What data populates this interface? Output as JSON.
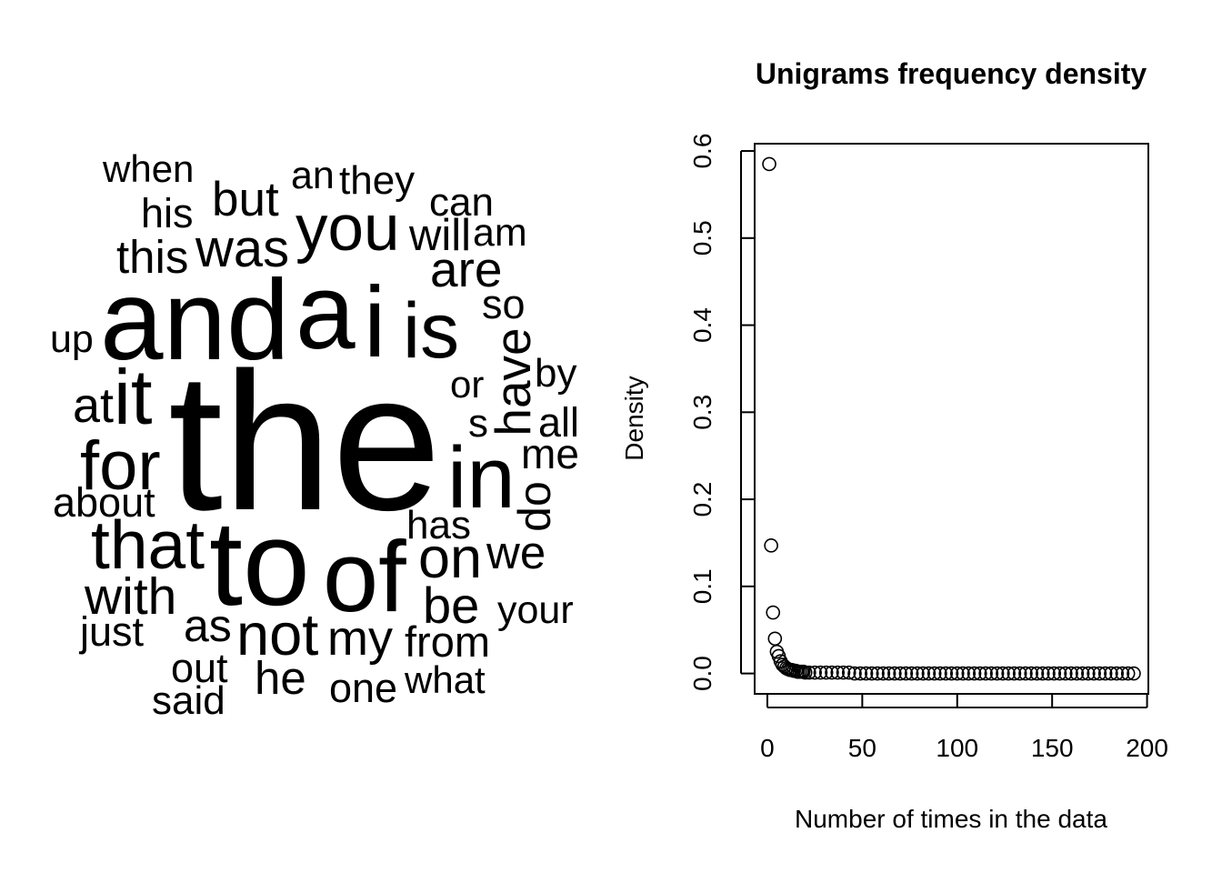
{
  "chart_data": [
    {
      "type": "wordcloud",
      "words": [
        "the",
        "and",
        "a",
        "i",
        "is",
        "to",
        "of",
        "in",
        "it",
        "at",
        "for",
        "that",
        "with",
        "about",
        "up",
        "this",
        "his",
        "when",
        "was",
        "but",
        "an",
        "they",
        "you",
        "can",
        "will",
        "am",
        "are",
        "so",
        "have",
        "by",
        "or",
        "s",
        "all",
        "me",
        "do",
        "has",
        "on",
        "we",
        "be",
        "your",
        "just",
        "as",
        "not",
        "my",
        "from",
        "out",
        "he",
        "one",
        "what",
        "said"
      ]
    },
    {
      "type": "scatter",
      "title": "Unigrams frequency density",
      "x_label": "Number of times in the data",
      "y_label": "Density",
      "x": [
        1,
        2,
        3,
        4,
        5,
        6,
        7,
        8,
        9,
        10,
        11,
        12,
        13,
        14,
        15,
        16,
        17,
        18,
        19,
        20,
        22,
        25,
        28,
        31,
        34,
        37,
        40,
        43,
        46,
        49,
        52,
        55,
        58,
        61,
        64,
        67,
        70,
        73,
        76,
        79,
        82,
        85,
        88,
        91,
        94,
        97,
        100,
        103,
        106,
        109,
        112,
        115,
        118,
        121,
        124,
        127,
        130,
        133,
        136,
        139,
        142,
        145,
        148,
        151,
        154,
        157,
        160,
        163,
        166,
        169,
        172,
        175,
        178,
        181,
        184,
        187,
        190,
        193
      ],
      "y": [
        0.585,
        0.147,
        0.07,
        0.04,
        0.025,
        0.02,
        0.014,
        0.01,
        0.008,
        0.006,
        0.005,
        0.004,
        0.004,
        0.003,
        0.003,
        0.002,
        0.002,
        0.002,
        0.002,
        0.001,
        0.001,
        0.001,
        0.001,
        0.001,
        0.001,
        0.001,
        0.001,
        0.001,
        0,
        0,
        0,
        0,
        0,
        0,
        0,
        0,
        0,
        0,
        0,
        0,
        0,
        0,
        0,
        0,
        0,
        0,
        0,
        0,
        0,
        0,
        0,
        0,
        0,
        0,
        0,
        0,
        0,
        0,
        0,
        0,
        0,
        0,
        0,
        0,
        0,
        0,
        0,
        0,
        0,
        0,
        0,
        0,
        0,
        0,
        0,
        0,
        0,
        0
      ],
      "xlim": [
        -6.68,
        200.68
      ],
      "ylim": [
        -0.0234,
        0.6084
      ],
      "xticks": [
        0,
        50,
        100,
        150,
        200
      ],
      "yticks": [
        {
          "value": 0,
          "label": "0.0"
        },
        0.1,
        0.2,
        0.3,
        0.4,
        0.5,
        0.6
      ],
      "color": "#000000"
    }
  ]
}
